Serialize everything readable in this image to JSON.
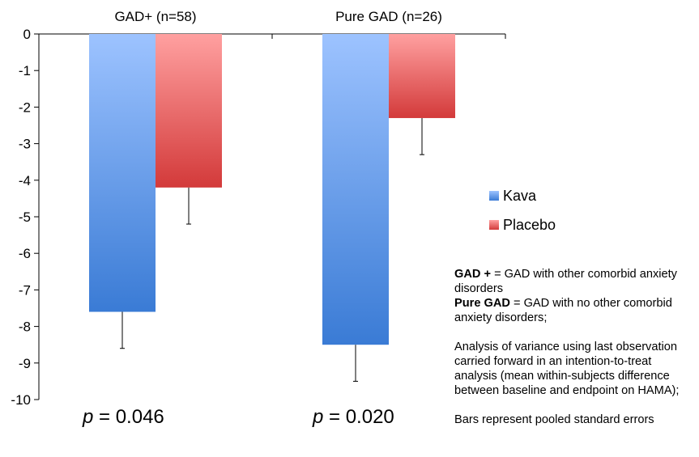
{
  "chart_data": {
    "type": "bar",
    "categories": [
      "GAD+ (n=58)",
      "Pure GAD (n=26)"
    ],
    "series": [
      {
        "name": "Kava",
        "values": [
          -7.6,
          -8.5
        ],
        "errors": [
          1.0,
          1.0
        ],
        "color_top": "#9dc3ff",
        "color_bottom": "#3a7bd5"
      },
      {
        "name": "Placebo",
        "values": [
          -4.2,
          -2.3
        ],
        "errors": [
          1.0,
          1.0
        ],
        "color_top": "#ffa0a0",
        "color_bottom": "#d33a3a"
      }
    ],
    "ylim": [
      -10,
      0
    ],
    "yticks": [
      "0",
      "-1",
      "-2",
      "-3",
      "-4",
      "-5",
      "-6",
      "-7",
      "-8",
      "-9",
      "-10"
    ],
    "legend_position": "right",
    "grid": false,
    "annotations": {
      "p_values": [
        {
          "label": "p",
          "value": " = 0.046"
        },
        {
          "label": "p",
          "value": " = 0.020"
        }
      ]
    }
  },
  "legend": {
    "items": [
      {
        "label": "Kava",
        "color": "#4a88e0"
      },
      {
        "label": "Placebo",
        "color": "#e05a5a"
      }
    ]
  },
  "notes": {
    "gad_plus_term": "GAD +",
    "gad_plus_def": " = GAD with other comorbid anxiety disorders",
    "pure_gad_term": "Pure GAD",
    "pure_gad_def": " = GAD with no other comorbid anxiety disorders;",
    "analysis": "Analysis of variance using last observation carried forward in an intention-to-treat analysis (mean within-subjects difference between baseline and endpoint on HAMA);",
    "bars": "Bars represent pooled standard errors"
  }
}
